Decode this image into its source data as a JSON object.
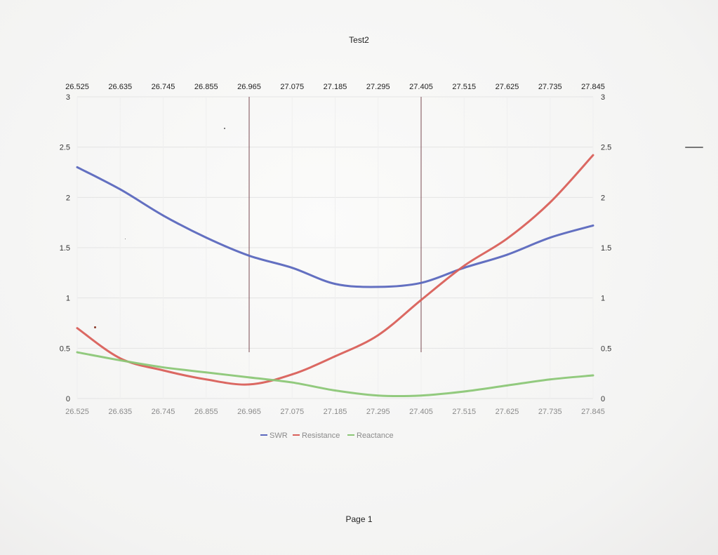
{
  "page": {
    "title": "Test2",
    "footer": "Page 1"
  },
  "chart_data": {
    "type": "line",
    "title": "Test2",
    "x": [
      26.525,
      26.635,
      26.745,
      26.855,
      26.965,
      27.075,
      27.185,
      27.295,
      27.405,
      27.515,
      27.625,
      27.735,
      27.845
    ],
    "x_tick_labels": [
      "26.525",
      "26.635",
      "26.745",
      "26.855",
      "26.965",
      "27.075",
      "27.185",
      "27.295",
      "27.405",
      "27.515",
      "27.625",
      "27.735",
      "27.845"
    ],
    "xlim": [
      26.525,
      27.845
    ],
    "ylim": [
      0,
      3
    ],
    "y_ticks": [
      0,
      0.5,
      1,
      1.5,
      2,
      2.5,
      3
    ],
    "y_tick_labels": [
      "0",
      "0.5",
      "1",
      "1.5",
      "2",
      "2.5",
      "3"
    ],
    "xlabel": "",
    "ylabel": "",
    "grid": true,
    "legend_position": "bottom",
    "markers_x": [
      26.965,
      27.405
    ],
    "series": [
      {
        "name": "SWR",
        "color": "#5b68be",
        "values": [
          2.3,
          2.08,
          1.82,
          1.6,
          1.42,
          1.3,
          1.14,
          1.11,
          1.15,
          1.3,
          1.43,
          1.6,
          1.72
        ]
      },
      {
        "name": "Resistance",
        "color": "#d9605a",
        "values": [
          0.7,
          0.4,
          0.28,
          0.19,
          0.14,
          0.24,
          0.42,
          0.63,
          0.98,
          1.32,
          1.59,
          1.95,
          2.42
        ]
      },
      {
        "name": "Reactance",
        "color": "#8cc777",
        "values": [
          0.46,
          0.38,
          0.31,
          0.26,
          0.21,
          0.16,
          0.08,
          0.03,
          0.03,
          0.07,
          0.13,
          0.19,
          0.23
        ]
      }
    ]
  }
}
